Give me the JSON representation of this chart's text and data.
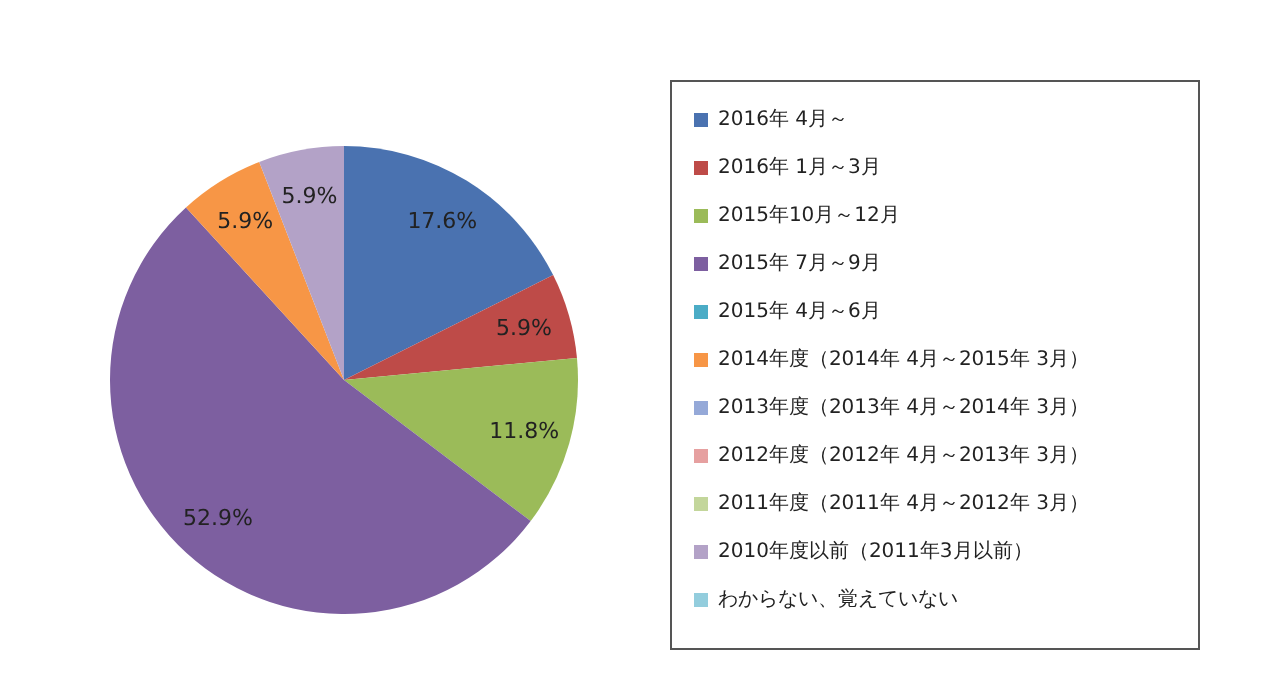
{
  "chart_data": {
    "type": "pie",
    "categories": [
      "2016年 4月～",
      "2016年 1月～3月",
      "2015年10月～12月",
      "2015年 7月～9月",
      "2015年 4月～6月",
      "2014年度（2014年 4月～2015年 3月）",
      "2013年度（2013年 4月～2014年 3月）",
      "2012年度（2012年 4月～2013年 3月）",
      "2011年度（2011年 4月～2012年 3月）",
      "2010年度以前（2011年3月以前）",
      "わからない、覚えていない"
    ],
    "values": [
      17.6,
      5.9,
      11.8,
      52.9,
      0,
      5.9,
      0,
      0,
      0,
      5.9,
      0
    ],
    "value_labels": [
      "17.6%",
      "5.9%",
      "11.8%",
      "52.9%",
      null,
      "5.9%",
      null,
      null,
      null,
      "5.9%",
      null
    ],
    "colors": [
      "#4a72b0",
      "#be4b48",
      "#9bbb59",
      "#7d5fa0",
      "#4bacc6",
      "#f79646",
      "#95a9d8",
      "#e6a0a0",
      "#c3d69b",
      "#b3a2c7",
      "#93cddd"
    ],
    "legend": "right"
  }
}
